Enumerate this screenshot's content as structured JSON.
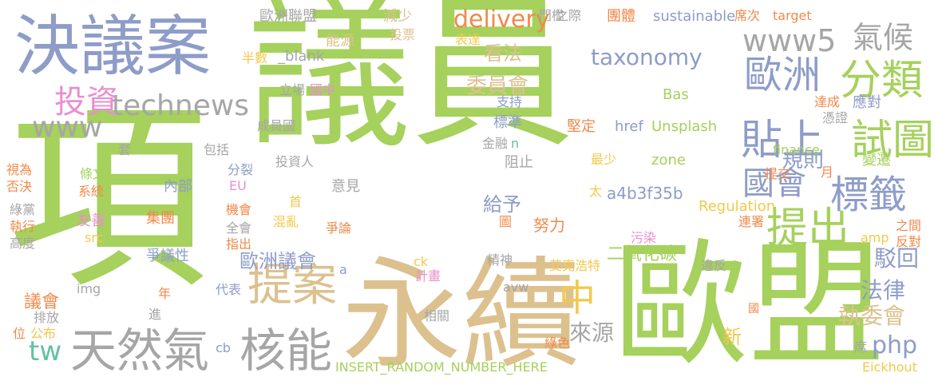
{
  "palette": {
    "green": "#a5d15c",
    "tan": "#dcc18f",
    "blue": "#8e9cc8",
    "gray": "#a6a6a6",
    "pink": "#e98fcf",
    "orange": "#f08a4b",
    "yellow": "#f2c94c",
    "teal": "#62c2a1"
  },
  "words": [
    {
      "t": "議員",
      "c": "green"
    },
    {
      "t": "項",
      "c": "green"
    },
    {
      "t": "永續",
      "c": "tan"
    },
    {
      "t": "歐盟",
      "c": "green"
    },
    {
      "t": "決議案",
      "c": "blue"
    },
    {
      "t": "天然氣",
      "c": "gray"
    },
    {
      "t": "核能",
      "c": "gray"
    },
    {
      "t": "提案",
      "c": "tan"
    },
    {
      "t": "提出",
      "c": "green"
    },
    {
      "t": "貼上",
      "c": "blue"
    },
    {
      "t": "試圖",
      "c": "green"
    },
    {
      "t": "分類",
      "c": "green"
    },
    {
      "t": "歐洲",
      "c": "blue"
    },
    {
      "t": "www5",
      "c": "gray"
    },
    {
      "t": "氣候",
      "c": "gray"
    },
    {
      "t": "technews",
      "c": "gray"
    },
    {
      "t": "投資",
      "c": "pink"
    },
    {
      "t": "www",
      "c": "gray"
    },
    {
      "t": "delivery",
      "c": "orange"
    },
    {
      "t": "taxonomy",
      "c": "blue"
    },
    {
      "t": "國會",
      "c": "blue"
    },
    {
      "t": "標籤",
      "c": "blue"
    },
    {
      "t": "規則",
      "c": "blue"
    },
    {
      "t": "中",
      "c": "yellow"
    },
    {
      "t": "委員會",
      "c": "tan"
    },
    {
      "t": "看法",
      "c": "tan"
    },
    {
      "t": "歐洲議會",
      "c": "blue"
    },
    {
      "t": "法律",
      "c": "blue"
    },
    {
      "t": "駁回",
      "c": "blue"
    },
    {
      "t": "執委會",
      "c": "tan"
    },
    {
      "t": "php",
      "c": "blue"
    },
    {
      "t": "來源",
      "c": "gray"
    },
    {
      "t": "tw",
      "c": "teal"
    },
    {
      "t": "給予",
      "c": "blue"
    },
    {
      "t": "努力",
      "c": "orange"
    },
    {
      "t": "新",
      "c": "yellow"
    },
    {
      "t": "二氧化碳",
      "c": "green"
    },
    {
      "t": "a4b3f35b",
      "c": "blue"
    },
    {
      "t": "zone",
      "c": "green"
    },
    {
      "t": "最少",
      "c": "yellow"
    },
    {
      "t": "href",
      "c": "blue"
    },
    {
      "t": "Unsplash",
      "c": "green"
    },
    {
      "t": "堅定",
      "c": "orange"
    },
    {
      "t": "Bas",
      "c": "green"
    },
    {
      "t": "Regulation",
      "c": "yellow"
    },
    {
      "t": "finance",
      "c": "green"
    },
    {
      "t": "sustainable",
      "c": "blue"
    },
    {
      "t": "target",
      "c": "orange"
    },
    {
      "t": "Eickhout",
      "c": "yellow"
    },
    {
      "t": "INSERT_RANDOM_NUMBER_HERE",
      "c": "green"
    },
    {
      "t": "歐洲聯盟",
      "c": "gray"
    },
    {
      "t": "減少",
      "c": "tan"
    },
    {
      "t": "門檻",
      "c": "gray"
    },
    {
      "t": "之際",
      "c": "gray"
    },
    {
      "t": "團體",
      "c": "orange"
    },
    {
      "t": "席次",
      "c": "orange"
    },
    {
      "t": "投票",
      "c": "tan"
    },
    {
      "t": "表達",
      "c": "yellow"
    },
    {
      "t": "能源",
      "c": "tan"
    },
    {
      "t": "_blank",
      "c": "gray"
    },
    {
      "t": "半數",
      "c": "yellow"
    },
    {
      "t": "立場",
      "c": "gray"
    },
    {
      "t": "國中",
      "c": "pink"
    },
    {
      "t": "支持",
      "c": "blue"
    },
    {
      "t": "標準",
      "c": "blue"
    },
    {
      "t": "金融",
      "c": "gray"
    },
    {
      "t": "n",
      "c": "teal"
    },
    {
      "t": "阻止",
      "c": "gray"
    },
    {
      "t": "成員國",
      "c": "gray"
    },
    {
      "t": "包括",
      "c": "gray"
    },
    {
      "t": "套",
      "c": "gray"
    },
    {
      "t": "投資人",
      "c": "gray"
    },
    {
      "t": "分裂",
      "c": "blue"
    },
    {
      "t": "內部",
      "c": "blue"
    },
    {
      "t": "EU",
      "c": "pink"
    },
    {
      "t": "首",
      "c": "yellow"
    },
    {
      "t": "意見",
      "c": "gray"
    },
    {
      "t": "集團",
      "c": "orange"
    },
    {
      "t": "機會",
      "c": "orange"
    },
    {
      "t": "混亂",
      "c": "yellow"
    },
    {
      "t": "全會",
      "c": "gray"
    },
    {
      "t": "指出",
      "c": "orange"
    },
    {
      "t": "爭論",
      "c": "orange"
    },
    {
      "t": "爭議性",
      "c": "blue"
    },
    {
      "t": "太",
      "c": "yellow"
    },
    {
      "t": "圖",
      "c": "orange"
    },
    {
      "t": "污染",
      "c": "pink"
    },
    {
      "t": "amp",
      "c": "yellow"
    },
    {
      "t": "違反",
      "c": "gray"
    },
    {
      "t": "精神",
      "c": "gray"
    },
    {
      "t": "ck",
      "c": "yellow"
    },
    {
      "t": "計畫",
      "c": "pink"
    },
    {
      "t": "艾克浩特",
      "c": "yellow"
    },
    {
      "t": "avw",
      "c": "gray"
    },
    {
      "t": "相關",
      "c": "gray"
    },
    {
      "t": "綠色",
      "c": "orange"
    },
    {
      "t": "cb",
      "c": "blue"
    },
    {
      "t": "代表",
      "c": "blue"
    },
    {
      "t": "年",
      "c": "orange"
    },
    {
      "t": "進",
      "c": "gray"
    },
    {
      "t": "img",
      "c": "gray"
    },
    {
      "t": "src",
      "c": "yellow"
    },
    {
      "t": "友善",
      "c": "pink"
    },
    {
      "t": "系統",
      "c": "orange"
    },
    {
      "t": "條文",
      "c": "green"
    },
    {
      "t": "視為",
      "c": "orange"
    },
    {
      "t": "否決",
      "c": "orange"
    },
    {
      "t": "綠黨",
      "c": "gray"
    },
    {
      "t": "執行",
      "c": "orange"
    },
    {
      "t": "高度",
      "c": "gray"
    },
    {
      "t": "議會",
      "c": "orange"
    },
    {
      "t": "排放",
      "c": "gray"
    },
    {
      "t": "位",
      "c": "orange"
    },
    {
      "t": "公布",
      "c": "yellow"
    },
    {
      "t": "a",
      "c": "blue"
    },
    {
      "t": "達成",
      "c": "orange"
    },
    {
      "t": "憑證",
      "c": "gray"
    },
    {
      "t": "應對",
      "c": "blue"
    },
    {
      "t": "提交",
      "c": "orange"
    },
    {
      "t": "月",
      "c": "orange"
    },
    {
      "t": "變遷",
      "c": "green"
    },
    {
      "t": "連署",
      "c": "orange"
    },
    {
      "t": "之間",
      "c": "orange"
    },
    {
      "t": "反對",
      "c": "orange"
    },
    {
      "t": "國",
      "c": "orange"
    },
    {
      "t": "席",
      "c": "gray"
    }
  ]
}
